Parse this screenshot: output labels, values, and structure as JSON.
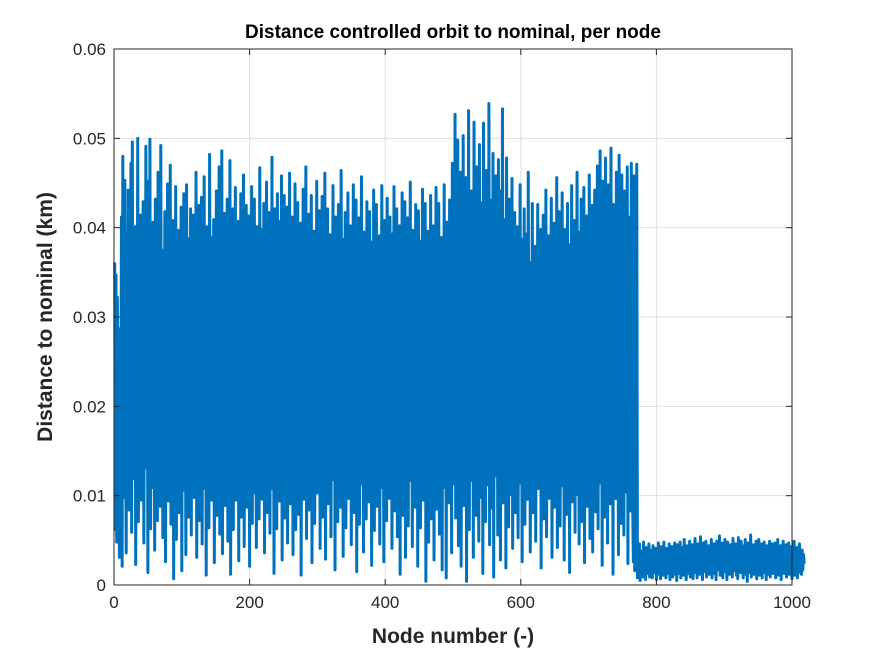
{
  "chart_data": {
    "type": "line",
    "title": "Distance controlled orbit to nominal, per node",
    "xlabel": "Node number (-)",
    "ylabel": "Distance to nominal (km)",
    "xlim": [
      0,
      1000
    ],
    "ylim": [
      0,
      0.06
    ],
    "xticks": [
      0,
      200,
      400,
      600,
      800,
      1000
    ],
    "yticks": [
      0,
      0.01,
      0.02,
      0.03,
      0.04,
      0.05,
      0.06
    ],
    "xtick_labels": [
      "0",
      "200",
      "400",
      "600",
      "800",
      "1000"
    ],
    "ytick_labels": [
      "0",
      "0.01",
      "0.02",
      "0.03",
      "0.04",
      "0.05",
      "0.06"
    ],
    "grid": true,
    "line_color": "#0072bd",
    "series": [
      {
        "x_start": 1,
        "x_step": 1,
        "values": [
          0.0361,
          0.0062,
          0.0347,
          0.0048,
          0.0322,
          0.0121,
          0.0201,
          0.0031,
          0.0287,
          0.0142,
          0.0412,
          0.0021,
          0.048,
          0.0098,
          0.0263,
          0.0453,
          0.0178,
          0.0036,
          0.0392,
          0.0227,
          0.0442,
          0.0084,
          0.0309,
          0.0153,
          0.0472,
          0.0059,
          0.0496,
          0.0212,
          0.0355,
          0.0119,
          0.0401,
          0.0023,
          0.0277,
          0.0166,
          0.05,
          0.0071,
          0.0334,
          0.0239,
          0.0414,
          0.0095,
          0.0293,
          0.0185,
          0.0429,
          0.0047,
          0.0366,
          0.0131,
          0.0491,
          0.0201,
          0.0311,
          0.0014,
          0.0452,
          0.0176,
          0.0499,
          0.0063,
          0.0341,
          0.0248,
          0.0406,
          0.0109,
          0.0289,
          0.0039,
          0.0432,
          0.0159,
          0.0384,
          0.0072,
          0.0462,
          0.0221,
          0.0316,
          0.0088,
          0.0492,
          0.0137,
          0.0375,
          0.0053,
          0.0267,
          0.0189,
          0.0418,
          0.0026,
          0.0339,
          0.0153,
          0.0449,
          0.0094,
          0.0298,
          0.0214,
          0.047,
          0.0068,
          0.0356,
          0.0113,
          0.0408,
          0.0007,
          0.0283,
          0.0178,
          0.0446,
          0.0051,
          0.0322,
          0.0199,
          0.0397,
          0.0081,
          0.0267,
          0.0143,
          0.0423,
          0.0016,
          0.0372,
          0.0231,
          0.0438,
          0.0106,
          0.0301,
          0.0034,
          0.0448,
          0.0168,
          0.0388,
          0.0076,
          0.0276,
          0.0193,
          0.0421,
          0.0056,
          0.0345,
          0.0145,
          0.0414,
          0.0098,
          0.0283,
          0.0181,
          0.0462,
          0.0031,
          0.0369,
          0.0218,
          0.0425,
          0.0072,
          0.0249,
          0.0159,
          0.0434,
          0.0046,
          0.0332,
          0.0192,
          0.0457,
          0.0108,
          0.0287,
          0.0011,
          0.0401,
          0.0173,
          0.0355,
          0.0064,
          0.0482,
          0.0209,
          0.0321,
          0.0095,
          0.0389,
          0.0151,
          0.0409,
          0.0025,
          0.0295,
          0.0201,
          0.0441,
          0.0078,
          0.0346,
          0.0124,
          0.0468,
          0.0057,
          0.0311,
          0.0182,
          0.0486,
          0.0035,
          0.0377,
          0.0219,
          0.0416,
          0.0089,
          0.0263,
          0.0166,
          0.0432,
          0.0049,
          0.0341,
          0.0108,
          0.0475,
          0.0012,
          0.0356,
          0.0207,
          0.0421,
          0.0062,
          0.0302,
          0.0177,
          0.0445,
          0.0095,
          0.0282,
          0.0134,
          0.0407,
          0.0027,
          0.0373,
          0.0191,
          0.0438,
          0.0076,
          0.0317,
          0.0153,
          0.0459,
          0.0043,
          0.0292,
          0.0208,
          0.0425,
          0.0087,
          0.0338,
          0.0129,
          0.0413,
          0.0021,
          0.0278,
          0.0168,
          0.0446,
          0.0069,
          0.0361,
          0.0219,
          0.0432,
          0.0103,
          0.0289,
          0.0042,
          0.0401,
          0.0183,
          0.0343,
          0.0074,
          0.0467,
          0.0155,
          0.0312,
          0.0096,
          0.0398,
          0.0211,
          0.0427,
          0.0036,
          0.0275,
          0.0143,
          0.0451,
          0.0081,
          0.0329,
          0.0196,
          0.0417,
          0.0058,
          0.0301,
          0.0164,
          0.0479,
          0.0108,
          0.0349,
          0.0013,
          0.0421,
          0.0177,
          0.0365,
          0.0063,
          0.0438,
          0.0226,
          0.0282,
          0.0094,
          0.0407,
          0.0139,
          0.0458,
          0.0028,
          0.0319,
          0.0208,
          0.0436,
          0.0075,
          0.0295,
          0.0181,
          0.0423,
          0.0047,
          0.0337,
          0.0149,
          0.0461,
          0.0091,
          0.0273,
          0.0201,
          0.0412,
          0.0034,
          0.0382,
          0.0122,
          0.0449,
          0.0062,
          0.0311,
          0.0186,
          0.0428,
          0.0079,
          0.0349,
          0.0153,
          0.0405,
          0.0011,
          0.0298,
          0.0217,
          0.0443,
          0.0096,
          0.0327,
          0.0171,
          0.0468,
          0.0052,
          0.0361,
          0.0138,
          0.0415,
          0.0084,
          0.0289,
          0.0194,
          0.0436,
          0.0025,
          0.0344,
          0.0168,
          0.0396,
          0.0069,
          0.0311,
          0.0213,
          0.0452,
          0.0103,
          0.0281,
          0.0147,
          0.0419,
          0.0041,
          0.0373,
          0.0192,
          0.0435,
          0.0076,
          0.0318,
          0.0122,
          0.0461,
          0.0029,
          0.0297,
          0.0205,
          0.0421,
          0.0091,
          0.0349,
          0.0163,
          0.0392,
          0.0054,
          0.0286,
          0.0181,
          0.0447,
          0.0118,
          0.0333,
          0.0017,
          0.0412,
          0.0198,
          0.0365,
          0.0071,
          0.0426,
          0.0143,
          0.0299,
          0.0087,
          0.0464,
          0.0211,
          0.0342,
          0.0032,
          0.0387,
          0.0166,
          0.0417,
          0.0064,
          0.0276,
          0.0129,
          0.0439,
          0.0097,
          0.0356,
          0.0189,
          0.0402,
          0.0045,
          0.0311,
          0.0221,
          0.0448,
          0.0081,
          0.0293,
          0.0152,
          0.0431,
          0.0015,
          0.0378,
          0.0176,
          0.0411,
          0.0068,
          0.0325,
          0.0202,
          0.0457,
          0.0113,
          0.0289,
          0.0037,
          0.0395,
          0.0185,
          0.0358,
          0.0074,
          0.0429,
          0.0141,
          0.0307,
          0.0093,
          0.0418,
          0.0224,
          0.0346,
          0.0022,
          0.0384,
          0.0167,
          0.0442,
          0.0061,
          0.0296,
          0.0133,
          0.0426,
          0.0088,
          0.0359,
          0.0197,
          0.0391,
          0.0046,
          0.0317,
          0.0179,
          0.0447,
          0.0109,
          0.0284,
          0.0026,
          0.0408,
          0.0204,
          0.0369,
          0.0072,
          0.0433,
          0.0156,
          0.0301,
          0.0097,
          0.0412,
          0.0218,
          0.0339,
          0.0041,
          0.0393,
          0.0171,
          0.0446,
          0.0083,
          0.0288,
          0.0129,
          0.0421,
          0.0054,
          0.0363,
          0.0193,
          0.0402,
          0.0012,
          0.0318,
          0.0214,
          0.0439,
          0.0078,
          0.0295,
          0.0149,
          0.0429,
          0.0031,
          0.0376,
          0.0181,
          0.0411,
          0.0066,
          0.0327,
          0.0206,
          0.0451,
          0.0117,
          0.0286,
          0.0043,
          0.0397,
          0.0172,
          0.0352,
          0.0087,
          0.0426,
          0.0143,
          0.0305,
          0.0021,
          0.0419,
          0.0229,
          0.0343,
          0.0064,
          0.0385,
          0.0159,
          0.0443,
          0.0095,
          0.0298,
          0.0135,
          0.0427,
          0.0004,
          0.0361,
          0.0191,
          0.0396,
          0.0048,
          0.0312,
          0.0112,
          0.0436,
          0.0074,
          0.0351,
          0.0181,
          0.0402,
          0.0028,
          0.0296,
          0.0218,
          0.0445,
          0.0085,
          0.0321,
          0.0164,
          0.0427,
          0.0057,
          0.0358,
          0.0196,
          0.0389,
          0.0017,
          0.0311,
          0.0142,
          0.0448,
          0.0109,
          0.0368,
          0.0008,
          0.0406,
          0.0174,
          0.0341,
          0.0092,
          0.0431,
          0.0223,
          0.0305,
          0.0036,
          0.0472,
          0.0158,
          0.0324,
          0.0113,
          0.0527,
          0.0075,
          0.0363,
          0.0201,
          0.0498,
          0.0044,
          0.0297,
          0.0136,
          0.0462,
          0.0021,
          0.0411,
          0.0181,
          0.0503,
          0.0089,
          0.0338,
          0.0245,
          0.0456,
          0.0004,
          0.0381,
          0.0169,
          0.0531,
          0.0062,
          0.0293,
          0.0208,
          0.0441,
          0.0117,
          0.0354,
          0.0031,
          0.0518,
          0.0152,
          0.0386,
          0.0078,
          0.0468,
          0.0239,
          0.0321,
          0.0049,
          0.0493,
          0.0135,
          0.0362,
          0.0098,
          0.0428,
          0.0013,
          0.0517,
          0.0191,
          0.0347,
          0.0071,
          0.0464,
          0.0226,
          0.0309,
          0.0112,
          0.0539,
          0.0045,
          0.0372,
          0.0167,
          0.0431,
          0.0086,
          0.0483,
          0.0009,
          0.0334,
          0.0213,
          0.0458,
          0.0122,
          0.0391,
          0.0056,
          0.0476,
          0.0198,
          0.0314,
          0.0028,
          0.0441,
          0.0149,
          0.0533,
          0.0092,
          0.0349,
          0.0178,
          0.0409,
          0.0019,
          0.0478,
          0.0232,
          0.0329,
          0.0065,
          0.0432,
          0.0156,
          0.0371,
          0.0101,
          0.0455,
          0.0041,
          0.0312,
          0.0193,
          0.0417,
          0.0081,
          0.0362,
          0.0137,
          0.0401,
          0.0053,
          0.0341,
          0.0218,
          0.0448,
          0.0114,
          0.0295,
          0.0026,
          0.0387,
          0.0175,
          0.0421,
          0.0068,
          0.0334,
          0.0148,
          0.0393,
          0.0096,
          0.0462,
          0.0192,
          0.0318,
          0.0037,
          0.0361,
          0.0167,
          0.0427,
          0.0081,
          0.0302,
          0.0125,
          0.0379,
          0.0049,
          0.0337,
          0.0233,
          0.0426,
          0.0108,
          0.0289,
          0.0157,
          0.0398,
          0.0019,
          0.0356,
          0.0196,
          0.0414,
          0.0074,
          0.0325,
          0.0139,
          0.0442,
          0.0054,
          0.0368,
          0.0184,
          0.0391,
          0.0097,
          0.0301,
          0.0216,
          0.0433,
          0.0031,
          0.0352,
          0.0146,
          0.0405,
          0.0087,
          0.0327,
          0.0191,
          0.0456,
          0.0042,
          0.0378,
          0.0124,
          0.0418,
          0.0066,
          0.0293,
          0.0207,
          0.0439,
          0.0111,
          0.0359,
          0.0028,
          0.0398,
          0.0173,
          0.0342,
          0.0079,
          0.0427,
          0.0151,
          0.0381,
          0.0014,
          0.0364,
          0.0206,
          0.0447,
          0.0093,
          0.0318,
          0.0132,
          0.0408,
          0.0059,
          0.0339,
          0.0184,
          0.0462,
          0.0101,
          0.0352,
          0.0046,
          0.0395,
          0.0157,
          0.0432,
          0.0071,
          0.0326,
          0.0218,
          0.0445,
          0.0025,
          0.0371,
          0.0145,
          0.0413,
          0.0088,
          0.0343,
          0.0191,
          0.0459,
          0.0052,
          0.0306,
          0.0115,
          0.0425,
          0.0037,
          0.0387,
          0.0206,
          0.0442,
          0.0082,
          0.0323,
          0.0155,
          0.0469,
          0.0063,
          0.0349,
          0.0181,
          0.0486,
          0.0114,
          0.0332,
          0.0022,
          0.0452,
          0.0199,
          0.0364,
          0.0076,
          0.0478,
          0.0133,
          0.0315,
          0.0047,
          0.0448,
          0.0223,
          0.0397,
          0.0091,
          0.0489,
          0.0169,
          0.0358,
          0.0012,
          0.0426,
          0.0184,
          0.0371,
          0.0097,
          0.0462,
          0.0147,
          0.0334,
          0.0034,
          0.0481,
          0.0211,
          0.0395,
          0.0069,
          0.0459,
          0.0122,
          0.0317,
          0.0056,
          0.0441,
          0.0189,
          0.0373,
          0.0104,
          0.0468,
          0.0024,
          0.0412,
          0.0179,
          0.0346,
          0.0083,
          0.0472,
          0.0138,
          0.0091,
          0.0026,
          0.0458,
          0.0016,
          0.0045,
          0.0019,
          0.0471,
          0.0008,
          0.0041,
          0.0012,
          0.0046,
          0.0005,
          0.0035,
          0.0022,
          0.0038,
          0.0009,
          0.0048,
          0.0016,
          0.0031,
          0.0006,
          0.0042,
          0.0013,
          0.0037,
          0.0021,
          0.0046,
          0.0009,
          0.0029,
          0.0017,
          0.0039,
          0.0008,
          0.0044,
          0.0014,
          0.0026,
          0.0019,
          0.0041,
          0.0006,
          0.0036,
          0.0012,
          0.0047,
          0.0021,
          0.0031,
          0.0007,
          0.0043,
          0.0015,
          0.0038,
          0.0011,
          0.0048,
          0.0018,
          0.0027,
          0.0008,
          0.0041,
          0.0023,
          0.0035,
          0.0013,
          0.0046,
          0.0006,
          0.0033,
          0.0016,
          0.0043,
          0.0009,
          0.0038,
          0.0019,
          0.0047,
          0.0012,
          0.0029,
          0.0005,
          0.0045,
          0.0021,
          0.0034,
          0.0013,
          0.0048,
          0.0008,
          0.0036,
          0.0017,
          0.0042,
          0.0011,
          0.0051,
          0.0019,
          0.0032,
          0.0006,
          0.0044,
          0.0022,
          0.0038,
          0.0013,
          0.0049,
          0.0009,
          0.0028,
          0.0017,
          0.0045,
          0.0007,
          0.0039,
          0.0023,
          0.0052,
          0.0014,
          0.0033,
          0.0008,
          0.0046,
          0.0018,
          0.0036,
          0.0012,
          0.0054,
          0.0021,
          0.0031,
          0.0006,
          0.0047,
          0.0015,
          0.0041,
          0.0024,
          0.0049,
          0.0009,
          0.0035,
          0.0017,
          0.0044,
          0.0012,
          0.0038,
          0.0019,
          0.0051,
          0.0008,
          0.0033,
          0.0021,
          0.0046,
          0.0013,
          0.0037,
          0.0006,
          0.0049,
          0.0017,
          0.0041,
          0.0023,
          0.0055,
          0.0011,
          0.0034,
          0.0019,
          0.0047,
          0.0008,
          0.0042,
          0.0015,
          0.0051,
          0.0022,
          0.0036,
          0.0006,
          0.0048,
          0.0018,
          0.0033,
          0.0012,
          0.0045,
          0.0024,
          0.0039,
          0.0009,
          0.0052,
          0.0016,
          0.0035,
          0.0021,
          0.0046,
          0.0011,
          0.0041,
          0.0007,
          0.0053,
          0.0019,
          0.0037,
          0.0014,
          0.0049,
          0.0022,
          0.0034,
          0.0008,
          0.0044,
          0.0017,
          0.0051,
          0.0012,
          0.0038,
          0.0004,
          0.0047,
          0.0021,
          0.0041,
          0.0014,
          0.0056,
          0.0009,
          0.0033,
          0.0018,
          0.0045,
          0.0012,
          0.0037,
          0.0022,
          0.0049,
          0.0007,
          0.0042,
          0.0016,
          0.0051,
          0.0011,
          0.0035,
          0.0019,
          0.0046,
          0.0008,
          0.0039,
          0.0024,
          0.0048,
          0.0014,
          0.0031,
          0.0006,
          0.0044,
          0.0019,
          0.0037,
          0.0012,
          0.0049,
          0.0009,
          0.0041,
          0.0017,
          0.0046,
          0.0013,
          0.0032,
          0.0021,
          0.0047,
          0.0008,
          0.0039,
          0.0015,
          0.0051,
          0.0011,
          0.0036,
          0.0023,
          0.0044,
          0.0006,
          0.0041,
          0.0018,
          0.0049,
          0.0013,
          0.0034,
          0.0019,
          0.0045,
          0.0009,
          0.0038,
          0.0016,
          0.0047,
          0.0012,
          0.0033,
          0.0022,
          0.0043,
          0.0007,
          0.0037,
          0.0017,
          0.0049,
          0.0011,
          0.0031,
          0.0019,
          0.0042,
          0.0008,
          0.0036,
          0.0014,
          0.0046,
          0.0021,
          0.0029,
          0.0012,
          0.0039,
          0.0017,
          0.0034,
          0.0024
        ]
      }
    ]
  }
}
